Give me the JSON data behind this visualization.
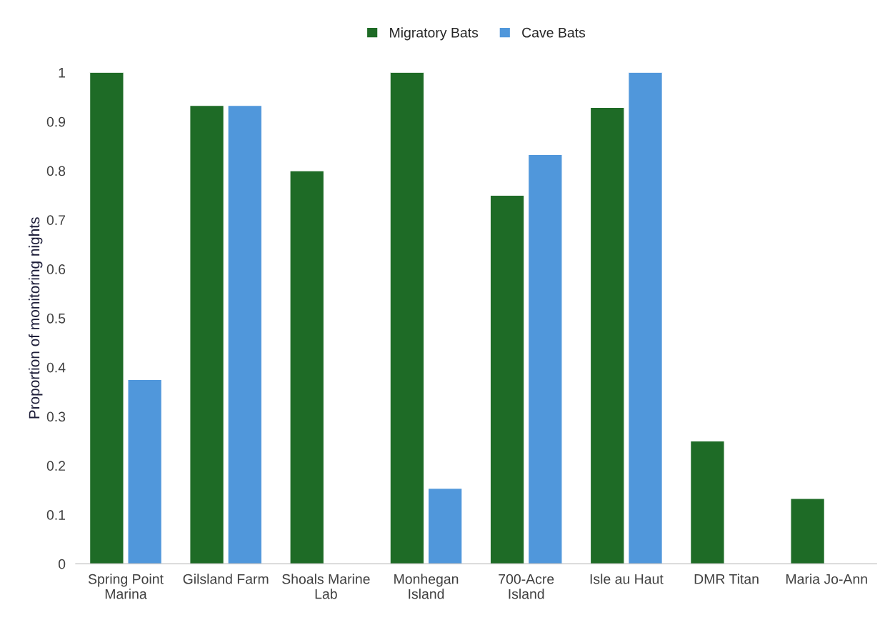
{
  "chart_data": {
    "type": "bar",
    "ylabel": "Proportion of monitoring nights",
    "categories": [
      "Spring Point\nMarina",
      "Gilsland Farm",
      "Shoals Marine\nLab",
      "Monhegan\nIsland",
      "700-Acre\nIsland",
      "Isle au Haut",
      "DMR Titan",
      "Maria Jo-Ann"
    ],
    "series": [
      {
        "name": "Migratory Bats",
        "color": "#1e6b26",
        "values": [
          1,
          0.933,
          0.8,
          1,
          0.75,
          0.929,
          0.25,
          0.133
        ]
      },
      {
        "name": "Cave Bats",
        "color": "#5097db",
        "values": [
          0.375,
          0.933,
          null,
          0.154,
          0.833,
          1,
          null,
          null
        ]
      }
    ],
    "ylim": [
      0,
      1
    ],
    "yticks": [
      0,
      0.1,
      0.2,
      0.3,
      0.4,
      0.5,
      0.6,
      0.7,
      0.8,
      0.9,
      1
    ],
    "grid": false,
    "legend": "top"
  }
}
